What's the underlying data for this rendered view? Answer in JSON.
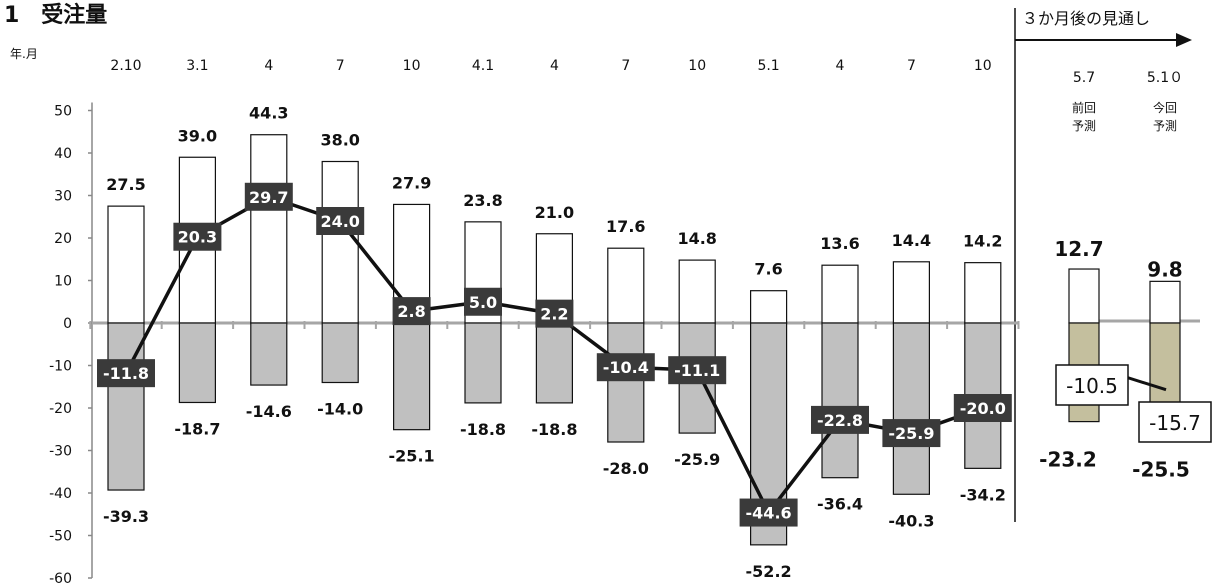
{
  "title": "1　受注量",
  "outlook_label": "３か月後の見通し",
  "x_unit_label": "年.月",
  "chart_data": {
    "type": "bar",
    "categories": [
      "2.10",
      "3.1",
      "4",
      "7",
      "10",
      "4.1",
      "4",
      "7",
      "10",
      "5.1",
      "4",
      "7",
      "10"
    ],
    "series": [
      {
        "values": [
          27.5,
          39.0,
          44.3,
          38.0,
          27.9,
          23.8,
          21.0,
          17.6,
          14.8,
          7.6,
          13.6,
          14.4,
          14.2
        ],
        "style": "white-bar"
      },
      {
        "values": [
          -39.3,
          -18.7,
          -14.6,
          -14.0,
          -25.1,
          -18.8,
          -18.8,
          -28.0,
          -25.9,
          -52.2,
          -36.4,
          -40.3,
          -34.2
        ],
        "style": "gray-bar"
      },
      {
        "values": [
          -11.8,
          20.3,
          29.7,
          24.0,
          2.8,
          5.0,
          2.2,
          -10.4,
          -11.1,
          -44.6,
          -22.8,
          -25.9,
          -20.0
        ],
        "style": "line"
      }
    ],
    "yticks": [
      50,
      40,
      30,
      20,
      10,
      0,
      -10,
      -20,
      -30,
      -40,
      -50,
      -60
    ],
    "ylim": [
      -60,
      50
    ],
    "forecast": {
      "columns": [
        {
          "period": "5.7",
          "sub": [
            "前回",
            "予測"
          ],
          "up": 12.7,
          "down": -23.2,
          "di": -10.5
        },
        {
          "period": "5.1０",
          "sub": [
            "今回",
            "予測"
          ],
          "up": 9.8,
          "down": -25.5,
          "di": -15.7
        }
      ]
    }
  },
  "colors": {
    "gray_bar": "#c0c0c0",
    "tan_bar": "#c4bf9e",
    "line": "#111111",
    "label_box": "#3a3a3a",
    "zero_line": "#a6a6a6",
    "marker": "#7a9a3a"
  }
}
